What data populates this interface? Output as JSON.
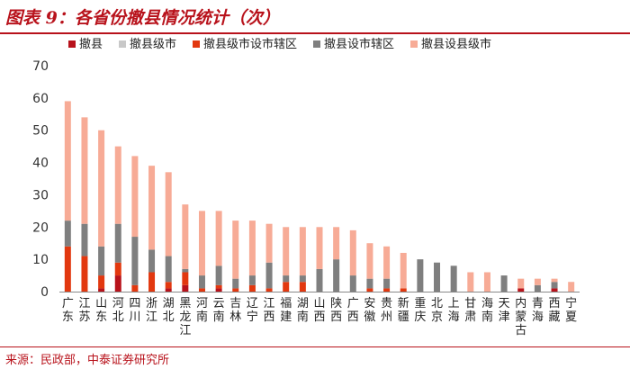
{
  "figure": {
    "title": "图表 9：各省份撤县情况统计（次）",
    "source": "来源：民政部，中泰证券研究所"
  },
  "chart_data": {
    "type": "bar",
    "stacked": true,
    "categories": [
      "广东",
      "江苏",
      "山东",
      "河北",
      "四川",
      "浙江",
      "湖北",
      "黑龙江",
      "河南",
      "云南",
      "吉林",
      "辽宁",
      "江西",
      "福建",
      "湖南",
      "山西",
      "陕西",
      "广西",
      "安徽",
      "贵州",
      "新疆",
      "重庆",
      "北京",
      "上海",
      "甘肃",
      "海南",
      "天津",
      "内蒙古",
      "青海",
      "西藏",
      "宁夏"
    ],
    "series": [
      {
        "name": "撤县",
        "color": "#b8121b",
        "values": [
          0,
          0,
          1,
          5,
          0,
          0,
          1,
          2,
          0,
          1,
          0,
          0,
          0,
          0,
          0,
          0,
          0,
          0,
          0,
          0,
          0,
          0,
          0,
          0,
          0,
          0,
          0,
          1,
          0,
          1,
          0
        ]
      },
      {
        "name": "撤县级市",
        "color": "#c8c8c8",
        "values": [
          0,
          0,
          0,
          0,
          0,
          0,
          0,
          0,
          0,
          0,
          0,
          0,
          0,
          0,
          0,
          0,
          0,
          0,
          0,
          0,
          0,
          0,
          0,
          0,
          0,
          0,
          0,
          0,
          0,
          0,
          0
        ]
      },
      {
        "name": "撤县级市设市辖区",
        "color": "#e2380f",
        "values": [
          14,
          11,
          4,
          4,
          2,
          6,
          2,
          4,
          1,
          1,
          1,
          2,
          1,
          3,
          3,
          0,
          0,
          0,
          1,
          1,
          1,
          0,
          0,
          0,
          0,
          0,
          0,
          0,
          0,
          0,
          0
        ]
      },
      {
        "name": "撤县设市辖区",
        "color": "#7f7f7f",
        "values": [
          8,
          10,
          9,
          12,
          15,
          7,
          8,
          1,
          4,
          6,
          3,
          3,
          8,
          2,
          2,
          7,
          10,
          5,
          3,
          3,
          0,
          10,
          9,
          8,
          0,
          0,
          5,
          0,
          2,
          2,
          0
        ]
      },
      {
        "name": "撤县设县级市",
        "color": "#f7ab96",
        "values": [
          37,
          33,
          36,
          24,
          25,
          26,
          26,
          20,
          20,
          17,
          18,
          17,
          12,
          15,
          15,
          13,
          10,
          14,
          11,
          10,
          11,
          0,
          0,
          0,
          6,
          6,
          0,
          3,
          2,
          1,
          3
        ]
      }
    ],
    "ylim": [
      0,
      70
    ],
    "yticks": [
      0,
      10,
      20,
      30,
      40,
      50,
      60,
      70
    ],
    "legend_position": "top",
    "grid": false
  }
}
